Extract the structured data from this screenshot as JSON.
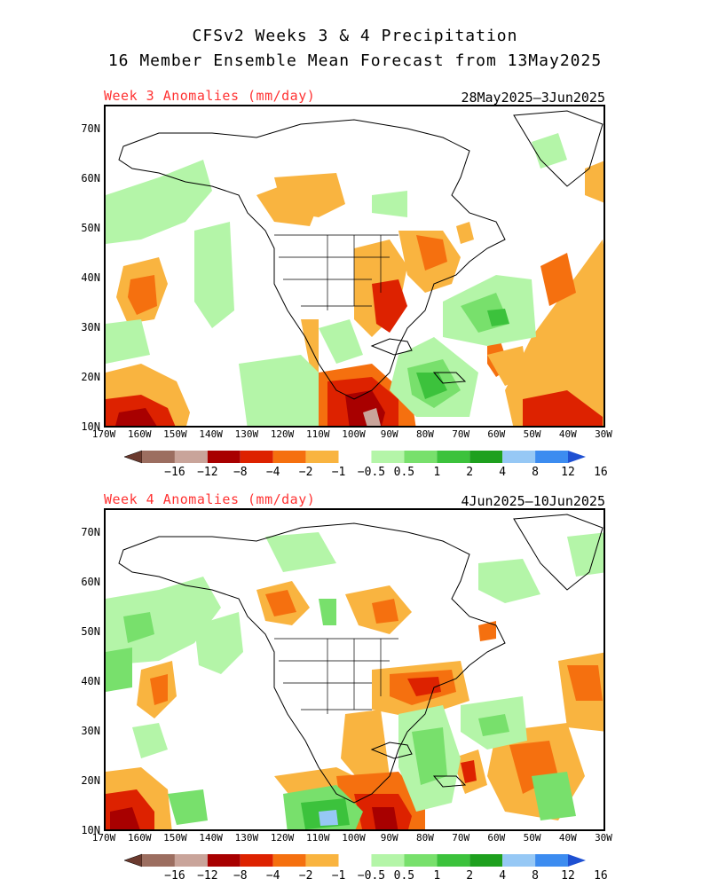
{
  "header": {
    "line1": "CFSv2 Weeks 3 & 4 Precipitation",
    "line2": "16 Member Ensemble Mean Forecast from 13May2025"
  },
  "panels": [
    {
      "title": "Week 3 Anomalies (mm/day)",
      "dates": "28May2025—3Jun2025"
    },
    {
      "title": "Week 4 Anomalies (mm/day)",
      "dates": "4Jun2025—10Jun2025"
    }
  ],
  "lat_labels": [
    "70N",
    "60N",
    "50N",
    "40N",
    "30N",
    "20N",
    "10N"
  ],
  "lon_labels": [
    "170W",
    "160W",
    "150W",
    "140W",
    "130W",
    "120W",
    "110W",
    "100W",
    "90W",
    "80W",
    "70W",
    "60W",
    "50W",
    "40W",
    "30W"
  ],
  "colorbar": {
    "labels": [
      "-16",
      "-12",
      "-8",
      "-4",
      "-2",
      "-1",
      "-0.5",
      "0.5",
      "1",
      "2",
      "4",
      "8",
      "12",
      "16"
    ],
    "colors": [
      "#6b3a2e",
      "#9c6e60",
      "#c9a49a",
      "#a80000",
      "#dd2200",
      "#f5700f",
      "#f9b440",
      "#ffffff",
      "#b4f5a8",
      "#78e06c",
      "#3cc23c",
      "#1ea01e",
      "#96c8f5",
      "#3c8cf0",
      "#1e50d2"
    ]
  }
}
